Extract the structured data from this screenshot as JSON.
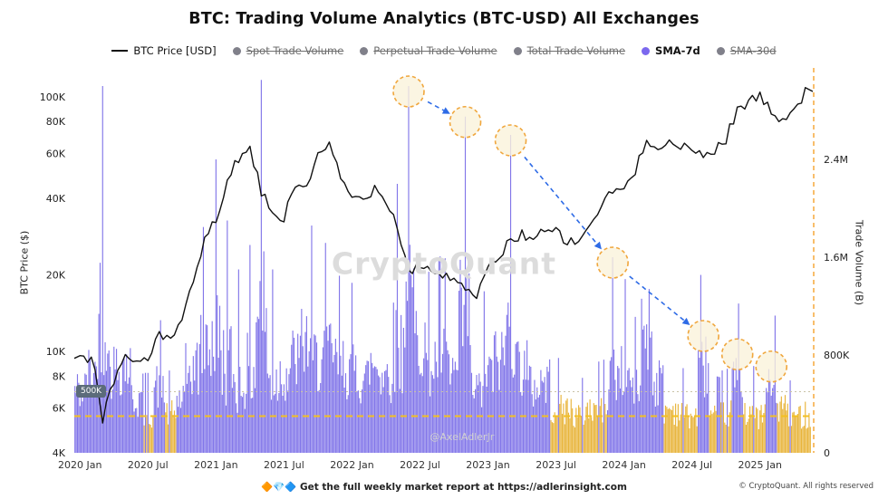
{
  "title": "BTC: Trading Volume Analytics (BTC-USD) All Exchanges",
  "watermark": "CryptoQuant",
  "handle": "@AxelAdlerJr",
  "threshold_label": "500K",
  "footer": {
    "report": "🔶💎🔷 Get the full weekly market report at https://adlerinsight.com",
    "copyright": "© CryptoQuant. All rights reserved"
  },
  "legend": [
    {
      "label": "BTC Price [USD]",
      "marker": "line",
      "color": "#111111",
      "struck": false,
      "bold": false
    },
    {
      "label": "Spot Trade Volume",
      "marker": "dot",
      "color": "#80808a",
      "struck": true,
      "bold": false
    },
    {
      "label": "Perpetual Trade Volume",
      "marker": "dot",
      "color": "#80808a",
      "struck": true,
      "bold": false
    },
    {
      "label": "Total Trade Volume",
      "marker": "dot",
      "color": "#80808a",
      "struck": true,
      "bold": false
    },
    {
      "label": "SMA-7d",
      "marker": "dot",
      "color": "#7b68ee",
      "struck": false,
      "bold": true
    },
    {
      "label": "SMA-30d",
      "marker": "dot",
      "color": "#80808a",
      "struck": true,
      "bold": false
    }
  ],
  "chart_data": {
    "type": "bar",
    "title": "BTC: Trading Volume Analytics (BTC-USD) All Exchanges",
    "left_axis": {
      "label": "BTC Price ($)",
      "scale": "log",
      "ticks": [
        {
          "v": 100,
          "label": "100K"
        },
        {
          "v": 80,
          "label": "80K"
        },
        {
          "v": 60,
          "label": "60K"
        },
        {
          "v": 40,
          "label": "40K"
        },
        {
          "v": 20,
          "label": "20K"
        },
        {
          "v": 10,
          "label": "10K"
        },
        {
          "v": 8,
          "label": "8K"
        },
        {
          "v": 6,
          "label": "6K"
        },
        {
          "v": 4,
          "label": "4K"
        }
      ]
    },
    "right_axis": {
      "label": "Trade Volume (B)",
      "scale": "linear",
      "ticks": [
        {
          "v": 0,
          "label": "0"
        },
        {
          "v": 0.8,
          "label": "800K"
        },
        {
          "v": 1.6,
          "label": "1.6M"
        },
        {
          "v": 2.4,
          "label": "2.4M"
        }
      ]
    },
    "x_ticks": [
      {
        "m": "2020-01",
        "label": "2020 Jan"
      },
      {
        "m": "2020-07",
        "label": "2020 Jul"
      },
      {
        "m": "2021-01",
        "label": "2021 Jan"
      },
      {
        "m": "2021-07",
        "label": "2021 Jul"
      },
      {
        "m": "2022-01",
        "label": "2022 Jan"
      },
      {
        "m": "2022-07",
        "label": "2022 Jul"
      },
      {
        "m": "2023-01",
        "label": "2023 Jan"
      },
      {
        "m": "2023-07",
        "label": "2023 Jul"
      },
      {
        "m": "2024-01",
        "label": "2024 Jan"
      },
      {
        "m": "2024-07",
        "label": "2024 Jul"
      },
      {
        "m": "2025-01",
        "label": "2025 Jan"
      }
    ],
    "months": [
      "2020-01",
      "2020-02",
      "2020-03",
      "2020-04",
      "2020-05",
      "2020-06",
      "2020-07",
      "2020-08",
      "2020-09",
      "2020-10",
      "2020-11",
      "2020-12",
      "2021-01",
      "2021-02",
      "2021-03",
      "2021-04",
      "2021-05",
      "2021-06",
      "2021-07",
      "2021-08",
      "2021-09",
      "2021-10",
      "2021-11",
      "2021-12",
      "2022-01",
      "2022-02",
      "2022-03",
      "2022-04",
      "2022-05",
      "2022-06",
      "2022-07",
      "2022-08",
      "2022-09",
      "2022-10",
      "2022-11",
      "2022-12",
      "2023-01",
      "2023-02",
      "2023-03",
      "2023-04",
      "2023-05",
      "2023-06",
      "2023-07",
      "2023-08",
      "2023-09",
      "2023-10",
      "2023-11",
      "2023-12",
      "2024-01",
      "2024-02",
      "2024-03",
      "2024-04",
      "2024-05",
      "2024-06",
      "2024-07",
      "2024-08",
      "2024-09",
      "2024-10",
      "2024-11",
      "2024-12",
      "2025-01",
      "2025-02",
      "2025-03",
      "2025-04",
      "2025-05"
    ],
    "series": [
      {
        "name": "BTC Price [USD]",
        "type": "line",
        "color": "#111111",
        "values_k_usd": [
          9.4,
          9.6,
          5.4,
          7.8,
          9.4,
          9.1,
          9.5,
          11.7,
          10.8,
          13.5,
          18.0,
          27.0,
          33,
          45,
          58,
          61,
          42,
          35,
          33,
          45,
          45,
          58,
          64,
          48,
          40,
          40,
          44,
          40,
          31,
          20.5,
          22,
          21,
          19.5,
          20,
          16.8,
          16.7,
          21,
          23.5,
          27.5,
          29,
          27.5,
          29.5,
          29.5,
          27,
          26.5,
          32,
          36.5,
          43,
          43.5,
          50,
          68,
          65,
          66,
          63,
          62,
          59,
          62,
          68,
          89,
          96,
          101,
          86,
          83,
          90,
          104
        ]
      },
      {
        "name": "SMA-7d",
        "type": "bar",
        "color": "#8276e9",
        "low_color": "#e8b43a",
        "values_b": [
          0.7,
          0.9,
          3.0,
          0.95,
          1.0,
          0.6,
          0.45,
          0.75,
          0.45,
          0.6,
          0.95,
          1.25,
          2.4,
          1.9,
          1.5,
          1.7,
          3.05,
          1.5,
          0.9,
          1.05,
          1.25,
          1.05,
          1.15,
          1.0,
          0.95,
          0.85,
          1.0,
          0.9,
          2.2,
          3.0,
          1.3,
          1.0,
          1.1,
          0.9,
          2.75,
          0.7,
          0.9,
          1.05,
          2.6,
          1.0,
          0.75,
          0.8,
          0.52,
          0.5,
          0.42,
          0.5,
          0.52,
          1.6,
          0.95,
          0.75,
          1.45,
          0.8,
          0.5,
          0.48,
          0.42,
          1.0,
          0.42,
          0.46,
          0.85,
          0.48,
          0.42,
          0.75,
          0.52,
          0.4,
          0.44
        ]
      }
    ],
    "annotations": {
      "circles": [
        {
          "m": "2022-06",
          "v": 3.0
        },
        {
          "m": "2022-11",
          "v": 2.75
        },
        {
          "m": "2023-03",
          "v": 2.6
        },
        {
          "m": "2023-12",
          "v": 1.6
        },
        {
          "m": "2024-08",
          "v": 1.0
        },
        {
          "m": "2024-11",
          "v": 0.85
        },
        {
          "m": "2025-02",
          "v": 0.75
        }
      ],
      "arrows": [
        [
          0,
          1
        ],
        [
          2,
          3
        ],
        [
          3,
          4
        ]
      ],
      "dotted_line_value": 0.5,
      "dashed_line_value": 0.3,
      "right_edge_dashed": true,
      "arrow_color": "#2e6be6",
      "circle_border_color": "#f0a63c",
      "dashed_line_color": "#f3c021"
    }
  }
}
